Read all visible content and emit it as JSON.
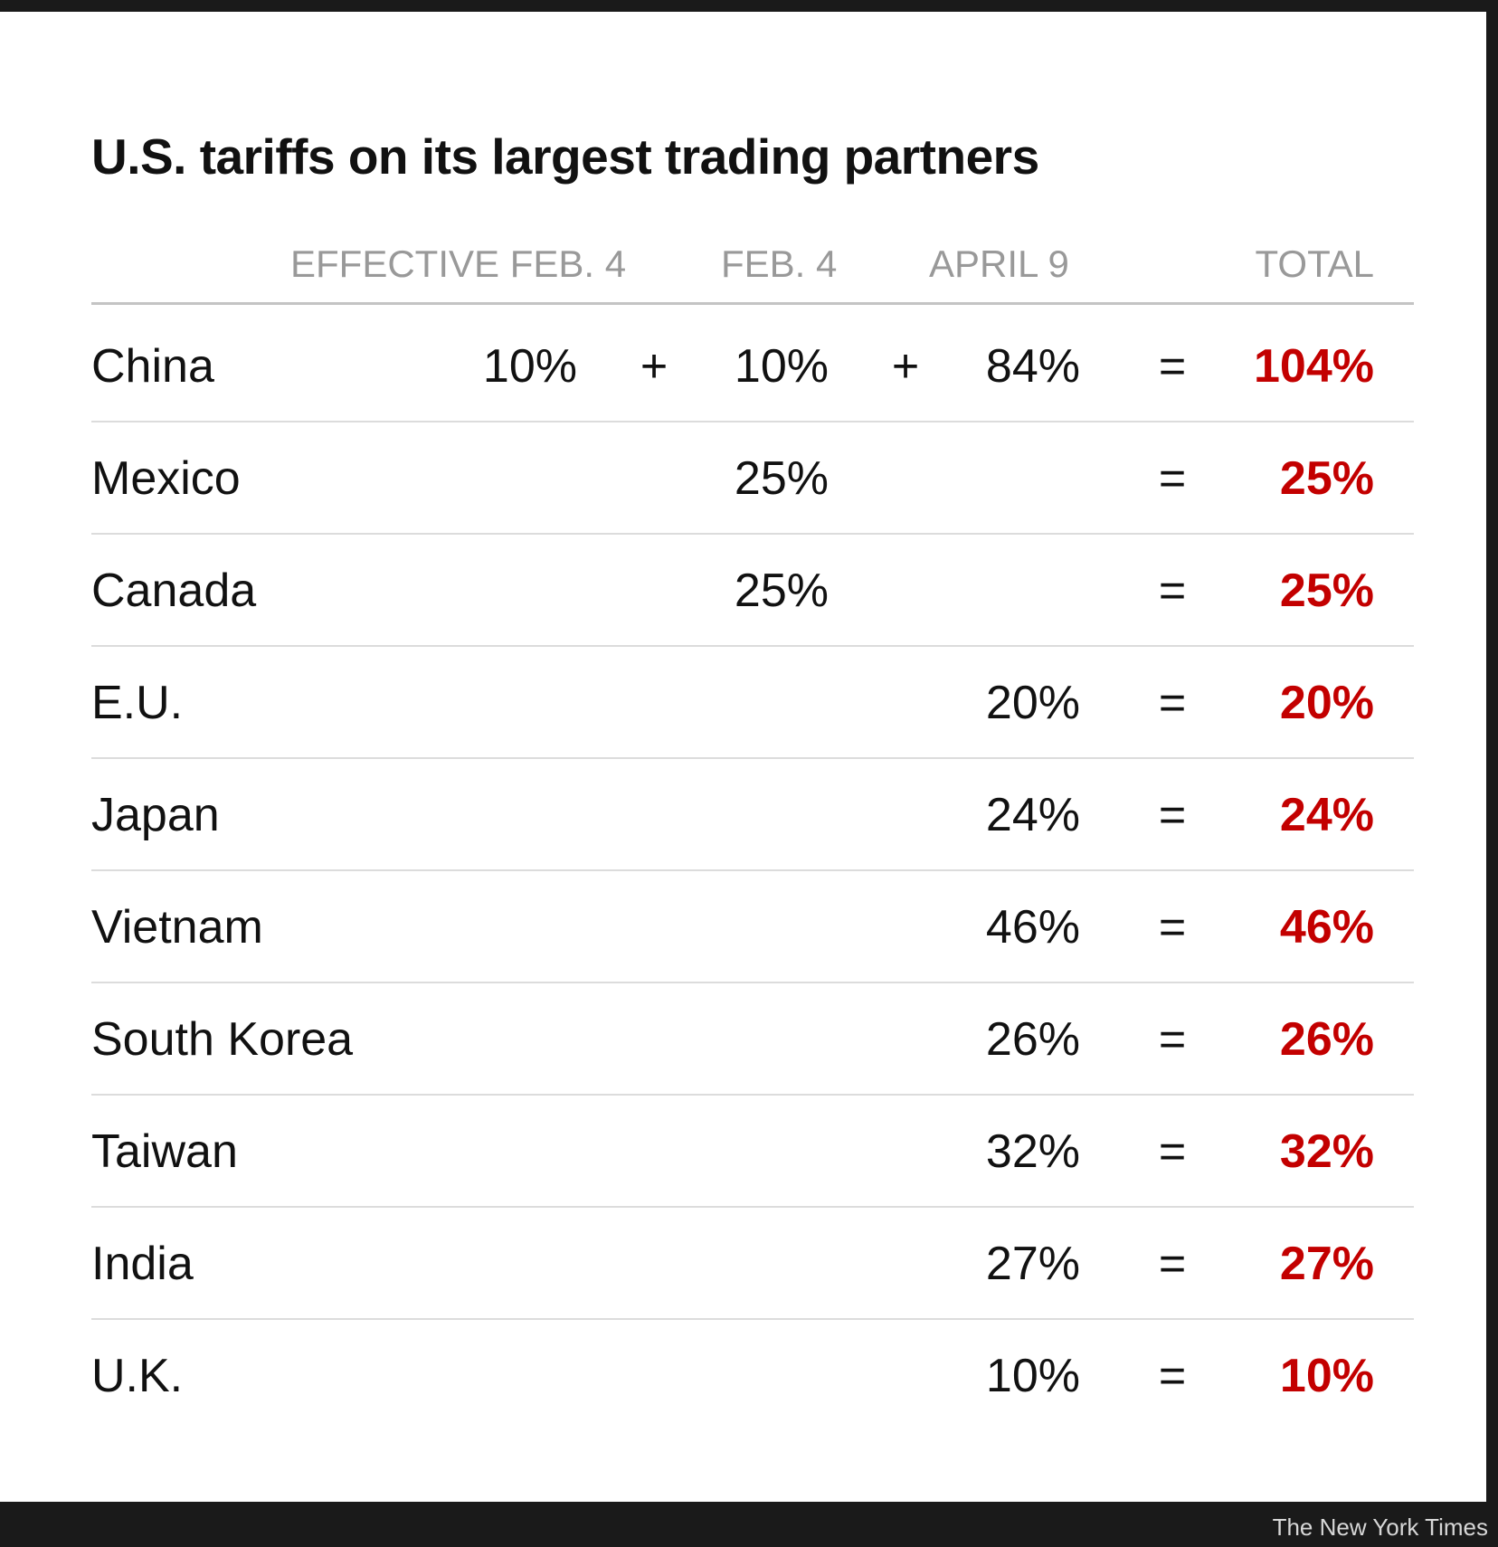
{
  "chart_data": {
    "type": "table",
    "title": "U.S. tariffs on its largest trading partners",
    "columns": [
      "EFFECTIVE FEB. 4",
      "FEB. 4",
      "APRIL 9",
      "TOTAL"
    ],
    "rows": [
      {
        "country": "China",
        "effective_feb4": "10%",
        "feb4": "10%",
        "april9": "84%",
        "total": "104%"
      },
      {
        "country": "Mexico",
        "effective_feb4": "",
        "feb4": "25%",
        "april9": "",
        "total": "25%"
      },
      {
        "country": "Canada",
        "effective_feb4": "",
        "feb4": "25%",
        "april9": "",
        "total": "25%"
      },
      {
        "country": "E.U.",
        "effective_feb4": "",
        "feb4": "",
        "april9": "20%",
        "total": "20%"
      },
      {
        "country": "Japan",
        "effective_feb4": "",
        "feb4": "",
        "april9": "24%",
        "total": "24%"
      },
      {
        "country": "Vietnam",
        "effective_feb4": "",
        "feb4": "",
        "april9": "46%",
        "total": "46%"
      },
      {
        "country": "South Korea",
        "effective_feb4": "",
        "feb4": "",
        "april9": "26%",
        "total": "26%"
      },
      {
        "country": "Taiwan",
        "effective_feb4": "",
        "feb4": "",
        "april9": "32%",
        "total": "32%"
      },
      {
        "country": "India",
        "effective_feb4": "",
        "feb4": "",
        "april9": "27%",
        "total": "27%"
      },
      {
        "country": "U.K.",
        "effective_feb4": "",
        "feb4": "",
        "april9": "10%",
        "total": "10%"
      }
    ],
    "operators": {
      "plus": "+",
      "equals": "="
    },
    "colors": {
      "total": "#c30000",
      "header": "#999999",
      "text": "#111111"
    }
  },
  "credit": "The New York Times"
}
